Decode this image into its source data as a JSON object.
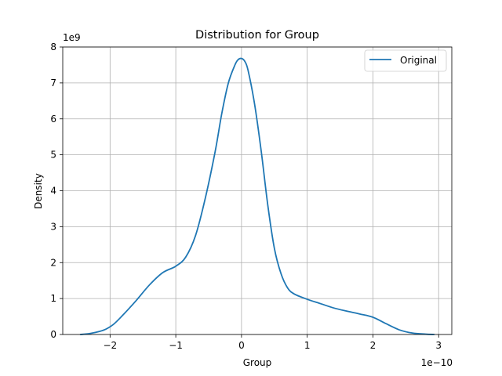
{
  "chart_data": {
    "type": "line",
    "title": "Distribution for Group",
    "xlabel": "Group",
    "ylabel": "Density",
    "x_offset_text": "1e−10",
    "y_offset_text": "1e9",
    "xlim": [
      -2.72e-10,
      3.2e-10
    ],
    "ylim": [
      0,
      8000000000.0
    ],
    "xticks": [
      -2e-10,
      -1e-10,
      0,
      1e-10,
      2e-10,
      3e-10
    ],
    "xtick_labels": [
      "−2",
      "−1",
      "0",
      "1",
      "2",
      "3"
    ],
    "yticks": [
      0,
      1000000000.0,
      2000000000.0,
      3000000000.0,
      4000000000.0,
      5000000000.0,
      6000000000.0,
      7000000000.0,
      8000000000.0
    ],
    "ytick_labels": [
      "0",
      "1",
      "2",
      "3",
      "4",
      "5",
      "6",
      "7",
      "8"
    ],
    "grid": true,
    "legend_position": "top-right",
    "series": [
      {
        "name": "Original",
        "color": "#1f77b4",
        "x": [
          -2.45e-10,
          -2.3e-10,
          -2.1e-10,
          -1.95e-10,
          -1.8e-10,
          -1.6e-10,
          -1.4e-10,
          -1.2e-10,
          -1e-10,
          -8.5e-11,
          -7e-11,
          -5.5e-11,
          -4e-11,
          -3e-11,
          -2e-11,
          -1e-11,
          -5e-12,
          0,
          5e-12,
          1e-11,
          2e-11,
          3e-11,
          4e-11,
          5e-11,
          6e-11,
          7e-11,
          8e-11,
          1e-10,
          1.2e-10,
          1.4e-10,
          1.6e-10,
          1.8e-10,
          2e-10,
          2.2e-10,
          2.4e-10,
          2.6e-10,
          2.8e-10,
          2.93e-10
        ],
        "y": [
          0.0,
          30000000.0,
          120000000.0,
          280000000.0,
          550000000.0,
          950000000.0,
          1380000000.0,
          1720000000.0,
          1900000000.0,
          2150000000.0,
          2750000000.0,
          3800000000.0,
          5100000000.0,
          6150000000.0,
          7000000000.0,
          7500000000.0,
          7650000000.0,
          7680000000.0,
          7600000000.0,
          7350000000.0,
          6400000000.0,
          5100000000.0,
          3600000000.0,
          2400000000.0,
          1700000000.0,
          1300000000.0,
          1130000000.0,
          980000000.0,
          860000000.0,
          740000000.0,
          650000000.0,
          570000000.0,
          480000000.0,
          300000000.0,
          130000000.0,
          40000000.0,
          10000000.0,
          0.0
        ]
      }
    ]
  }
}
